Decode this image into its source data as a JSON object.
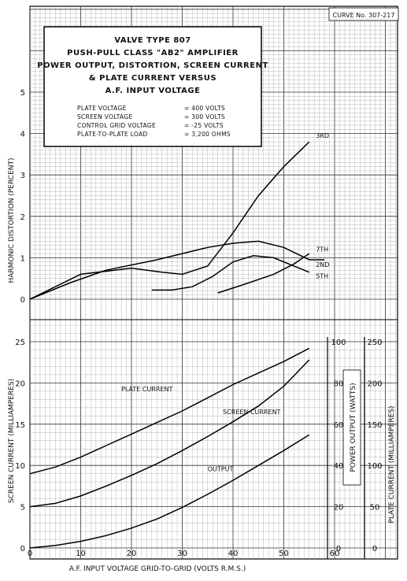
{
  "curve_number": "CURVE No. 307-217",
  "title_lines": [
    "VALVE TYPE 807",
    "PUSH-PULL CLASS \"AB2\" AMPLIFIER",
    "POWER OUTPUT, DISTORTION, SCREEN CURRENT",
    "& PLATE CURRENT VERSUS",
    "A.F. INPUT VOLTAGE"
  ],
  "conditions": [
    {
      "label": "PLATE VOLTAGE",
      "value": "= 400 VOLTS"
    },
    {
      "label": "SCREEN VOLTAGE",
      "value": "= 300 VOLTS"
    },
    {
      "label": "CONTROL GRID VOLTAGE",
      "value": "= -25 VOLTS"
    },
    {
      "label": "PLATE-TO-PLATE LOAD",
      "value": "= 3,200 OHMS"
    }
  ],
  "chart_data": [
    {
      "type": "line",
      "ylabel": "HARMONIC DISTORTION (PERCENT)",
      "xlim": [
        0,
        70
      ],
      "ylim": [
        0,
        5.4
      ],
      "x_ticks": [
        0,
        10,
        20,
        30,
        40,
        50,
        60
      ],
      "y_ticks": [
        0,
        1,
        2,
        3,
        4,
        5
      ],
      "grid": true,
      "series": [
        {
          "name": "3RD",
          "points": [
            [
              0,
              0
            ],
            [
              10,
              0.6
            ],
            [
              20,
              0.75
            ],
            [
              26,
              0.65
            ],
            [
              30,
              0.6
            ],
            [
              35,
              0.8
            ],
            [
              40,
              1.6
            ],
            [
              45,
              2.5
            ],
            [
              50,
              3.2
            ],
            [
              55,
              3.8
            ]
          ]
        },
        {
          "name": "7TH",
          "points": [
            [
              0,
              0
            ],
            [
              8,
              0.4
            ],
            [
              15,
              0.7
            ],
            [
              25,
              0.95
            ],
            [
              35,
              1.25
            ],
            [
              40,
              1.35
            ],
            [
              45,
              1.4
            ],
            [
              50,
              1.25
            ],
            [
              55,
              0.95
            ],
            [
              58,
              0.95
            ]
          ]
        },
        {
          "name": "2ND",
          "points": [
            [
              24,
              0.22
            ],
            [
              28,
              0.22
            ],
            [
              32,
              0.3
            ],
            [
              36,
              0.55
            ],
            [
              40,
              0.9
            ],
            [
              44,
              1.05
            ],
            [
              48,
              1.0
            ],
            [
              52,
              0.8
            ],
            [
              55,
              0.65
            ]
          ]
        },
        {
          "name": "5TH",
          "points": [
            [
              37,
              0.15
            ],
            [
              42,
              0.35
            ],
            [
              48,
              0.6
            ],
            [
              52,
              0.85
            ],
            [
              55,
              1.1
            ]
          ]
        }
      ]
    },
    {
      "type": "line",
      "xlabel": "A.F. INPUT VOLTAGE GRID-TO-GRID (VOLTS R.M.S.)",
      "ylabel": "SCREEN CURRENT (MILLIAMPERES)",
      "ylabel_right_1": "POWER OUTPUT (WATTS)",
      "ylabel_right_2": "PLATE CURRENT (MILLIAMPERES)",
      "xlim": [
        0,
        70
      ],
      "ylim": [
        0,
        25
      ],
      "x_ticks": [
        0,
        10,
        20,
        30,
        40,
        50,
        60
      ],
      "y_ticks": [
        0,
        5,
        10,
        15,
        20,
        25
      ],
      "y_ticks_right_1": [
        0,
        20,
        40,
        60,
        80,
        100
      ],
      "y_ticks_right_2": [
        0,
        50,
        100,
        150,
        200,
        250
      ],
      "grid": true,
      "series": [
        {
          "name": "PLATE CURRENT",
          "points": [
            [
              0,
              9
            ],
            [
              5,
              9.8
            ],
            [
              10,
              11
            ],
            [
              15,
              12.4
            ],
            [
              20,
              13.8
            ],
            [
              25,
              15.2
            ],
            [
              30,
              16.6
            ],
            [
              35,
              18.2
            ],
            [
              40,
              19.8
            ],
            [
              45,
              21.2
            ],
            [
              50,
              22.6
            ],
            [
              55,
              24.2
            ]
          ]
        },
        {
          "name": "SCREEN CURRENT",
          "points": [
            [
              0,
              5
            ],
            [
              5,
              5.4
            ],
            [
              10,
              6.3
            ],
            [
              15,
              7.5
            ],
            [
              20,
              8.8
            ],
            [
              25,
              10.2
            ],
            [
              30,
              11.8
            ],
            [
              35,
              13.5
            ],
            [
              40,
              15.3
            ],
            [
              45,
              17.2
            ],
            [
              50,
              19.6
            ],
            [
              55,
              22.8
            ]
          ]
        },
        {
          "name": "OUTPUT",
          "points": [
            [
              0,
              0
            ],
            [
              5,
              0.3
            ],
            [
              10,
              0.8
            ],
            [
              15,
              1.5
            ],
            [
              20,
              2.4
            ],
            [
              25,
              3.5
            ],
            [
              30,
              4.9
            ],
            [
              35,
              6.5
            ],
            [
              40,
              8.2
            ],
            [
              45,
              10
            ],
            [
              50,
              11.8
            ],
            [
              55,
              13.7
            ]
          ]
        }
      ]
    }
  ]
}
